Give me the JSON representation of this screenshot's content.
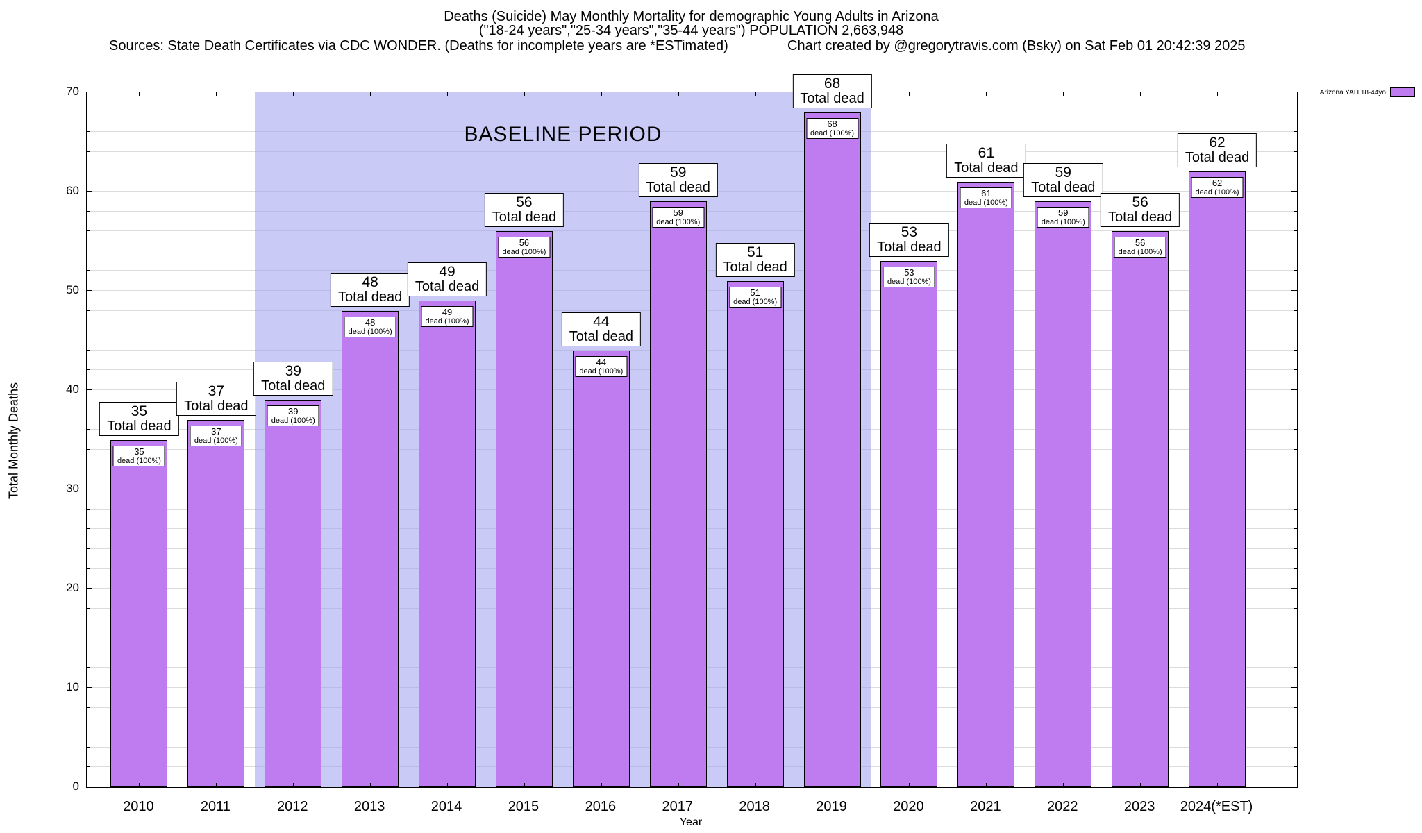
{
  "chart_data": {
    "type": "bar",
    "title": "Deaths (Suicide) May Monthly Mortality for demographic Young Adults in Arizona",
    "subtitle": "(\"18-24 years\",\"25-34 years\",\"35-44 years\") POPULATION 2,663,948",
    "source_note": "Sources: State Death Certificates via CDC WONDER. (Deaths for incomplete years are *ESTimated)",
    "credit_note": "Chart created by @gregorytravis.com (Bsky) on Sat Feb 01 20:42:39 2025",
    "categories": [
      "2010",
      "2011",
      "2012",
      "2013",
      "2014",
      "2015",
      "2016",
      "2017",
      "2018",
      "2019",
      "2020",
      "2021",
      "2022",
      "2023",
      "2024(*EST)"
    ],
    "values": [
      35,
      37,
      39,
      48,
      49,
      56,
      44,
      59,
      51,
      68,
      53,
      61,
      59,
      56,
      62
    ],
    "xlabel": "Year",
    "ylabel": "Total Monthly Deaths",
    "ylim": [
      0,
      70
    ],
    "ytick_step": 10,
    "grid_step": 2,
    "grid": "on",
    "bar_color": "#bf7bf0",
    "grid_color": "#dcdcdc",
    "legend_position": "top-right",
    "legend": [
      {
        "label": "Arizona YAH 18-44yo",
        "color": "#bf7bf0"
      }
    ],
    "baseline": {
      "label": "BASELINE PERIOD",
      "from_category": "2012",
      "to_category": "2019",
      "color": "#9f9ff0"
    },
    "annotations": {
      "above_format": "Total dead",
      "inside_format": "dead (100%)"
    }
  }
}
